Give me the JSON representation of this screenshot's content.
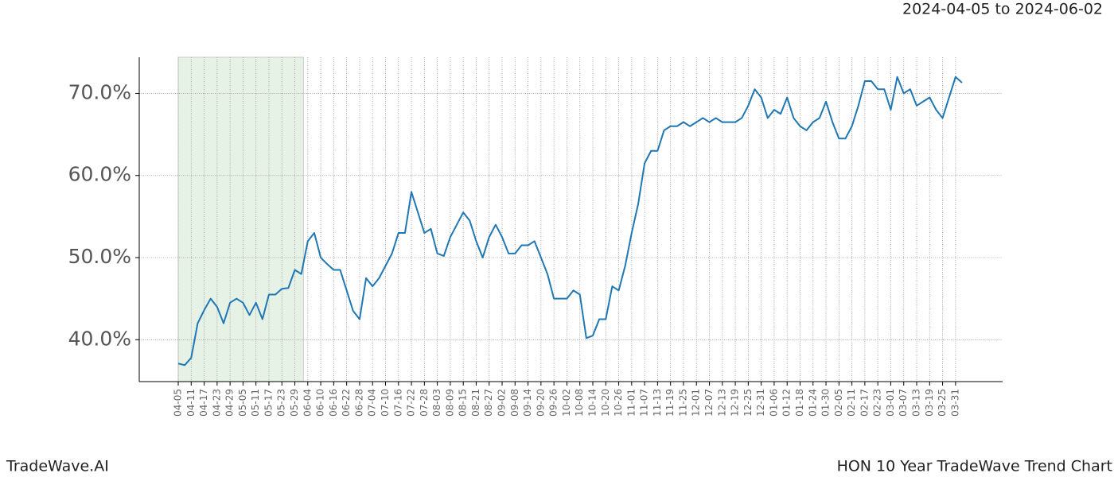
{
  "chart_data": {
    "type": "line",
    "title": "2024-04-05 to 2024-06-02",
    "footer_left": "TradeWave.AI",
    "footer_right": "HON 10 Year TradeWave Trend Chart",
    "categories": [
      "04-05",
      null,
      "04-11",
      null,
      "04-17",
      null,
      "04-23",
      null,
      "04-29",
      null,
      "05-05",
      null,
      "05-11",
      null,
      "05-17",
      null,
      "05-23",
      null,
      "05-29",
      null,
      "06-04",
      null,
      "06-10",
      null,
      "06-16",
      null,
      "06-22",
      null,
      "06-28",
      null,
      "07-04",
      null,
      "07-10",
      null,
      "07-16",
      null,
      "07-22",
      null,
      "07-28",
      null,
      "08-03",
      null,
      "08-09",
      null,
      "08-15",
      null,
      "08-21",
      null,
      "08-27",
      null,
      "09-02",
      null,
      "09-08",
      null,
      "09-14",
      null,
      "09-20",
      null,
      "09-26",
      null,
      "10-02",
      null,
      "10-08",
      null,
      "10-14",
      null,
      "10-20",
      null,
      "10-26",
      null,
      "11-01",
      null,
      "11-07",
      null,
      "11-13",
      null,
      "11-19",
      null,
      "11-25",
      null,
      "12-01",
      null,
      "12-07",
      null,
      "12-13",
      null,
      "12-19",
      null,
      "12-25",
      null,
      "12-31",
      null,
      "01-06",
      null,
      "01-12",
      null,
      "01-18",
      null,
      "01-24",
      null,
      "01-30",
      null,
      "02-05",
      null,
      "02-11",
      null,
      "02-17",
      null,
      "02-23",
      null,
      "03-01",
      null,
      "03-07",
      null,
      "03-13",
      null,
      "03-19",
      null,
      "03-25",
      null,
      "03-31",
      null
    ],
    "series": [
      {
        "color": "#1f77b4",
        "values": [
          37.1,
          36.9,
          37.8,
          42,
          43.6,
          45,
          44,
          42,
          44.5,
          45,
          44.5,
          43,
          44.5,
          42.5,
          45.5,
          45.5,
          46.2,
          46.3,
          48.5,
          48,
          52,
          53,
          50,
          49.2,
          48.5,
          48.5,
          46,
          43.5,
          42.5,
          47.5,
          46.5,
          47.5,
          49,
          50.5,
          53,
          53,
          58,
          55.5,
          53,
          53.5,
          50.5,
          50.2,
          52.5,
          54,
          55.5,
          54.5,
          52,
          50,
          52.5,
          54,
          52.5,
          50.5,
          50.5,
          51.5,
          51.5,
          52,
          50,
          48,
          45,
          45,
          45,
          46,
          45.5,
          40.2,
          40.5,
          42.5,
          42.5,
          46.5,
          46,
          49,
          53,
          56.5,
          61.5,
          63,
          63,
          65.5,
          66,
          66,
          66.5,
          66,
          66.5,
          67,
          66.5,
          67,
          66.5,
          66.5,
          66.5,
          67,
          68.5,
          70.5,
          69.5,
          67,
          68,
          67.5,
          69.5,
          67,
          66,
          65.5,
          66.5,
          67,
          69,
          66.5,
          64.5,
          64.5,
          66,
          68.5,
          71.5,
          71.5,
          70.5,
          70.5,
          68,
          72,
          70,
          70.5,
          68.5,
          69,
          69.5,
          68,
          67,
          69.5,
          72,
          71.3
        ]
      }
    ],
    "ylim": [
      34.9,
      74.4
    ],
    "yticks": [
      {
        "value": 40,
        "label": "40.0%"
      },
      {
        "value": 50,
        "label": "50.0%"
      },
      {
        "value": 60,
        "label": "60.0%"
      },
      {
        "value": 70,
        "label": "70.0%"
      }
    ],
    "grid": true,
    "shade_color": "#e5f2e5"
  }
}
